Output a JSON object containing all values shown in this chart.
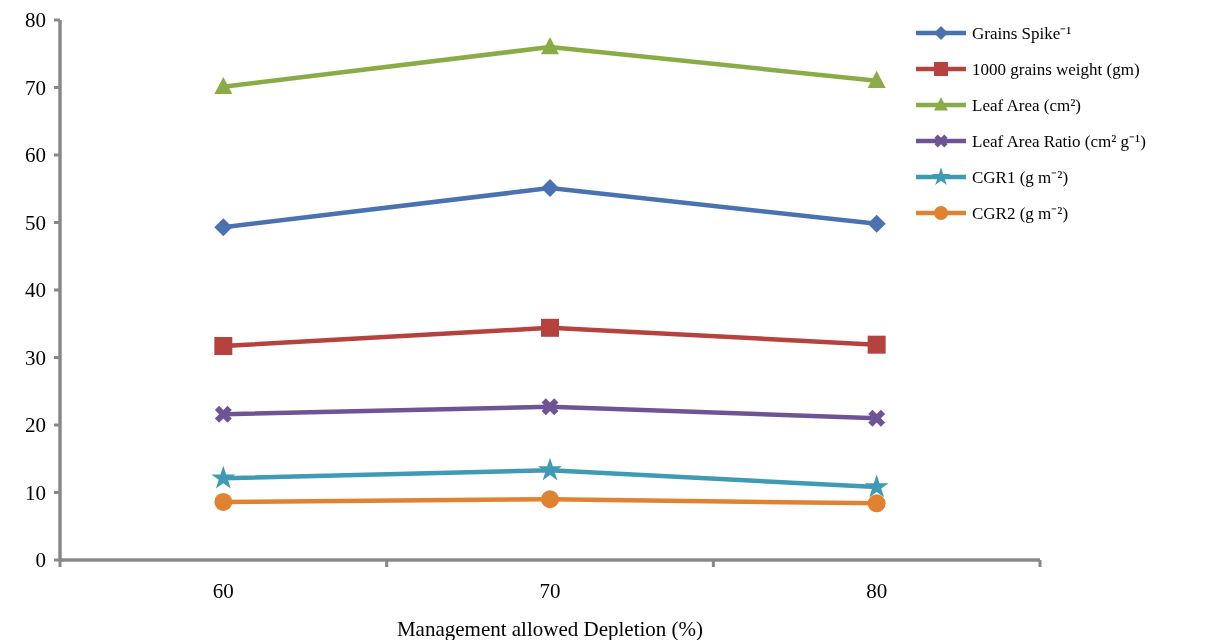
{
  "chart_data": {
    "type": "line",
    "xlabel": "Management allowed Depletion (%)",
    "categories": [
      "60",
      "70",
      "80"
    ],
    "ylim": [
      0,
      80
    ],
    "yticks": [
      0,
      10,
      20,
      30,
      40,
      50,
      60,
      70,
      80
    ],
    "grid": false,
    "legend": "right",
    "series": [
      {
        "name": "Grains Spike⁻¹",
        "color": "#4a72b0",
        "marker": "diamond",
        "values": [
          49.3,
          55.1,
          49.8
        ]
      },
      {
        "name": "1000 grains weight (gm)",
        "color": "#b6423d",
        "marker": "square",
        "values": [
          31.7,
          34.4,
          31.9
        ]
      },
      {
        "name": "Leaf Area (cm²)",
        "color": "#8aac47",
        "marker": "triangle",
        "values": [
          70.1,
          76.0,
          71.0
        ]
      },
      {
        "name": "Leaf Area Ratio (cm² g⁻¹)",
        "color": "#6e5494",
        "marker": "cross",
        "values": [
          21.6,
          22.7,
          21.0
        ]
      },
      {
        "name": "CGR1 (g m⁻²)",
        "color": "#3e9bb3",
        "marker": "star",
        "values": [
          12.1,
          13.3,
          10.8
        ]
      },
      {
        "name": "CGR2 (g m⁻²)",
        "color": "#e0822f",
        "marker": "circle",
        "values": [
          8.6,
          9.0,
          8.4
        ]
      }
    ]
  }
}
